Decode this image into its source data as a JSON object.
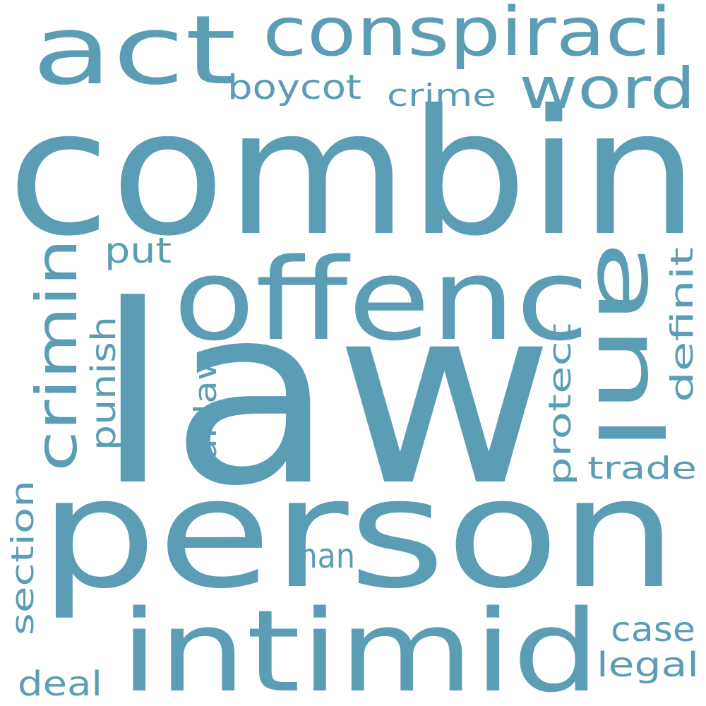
{
  "word_cloud": {
    "color": "#5b9db4",
    "background": "#ffffff",
    "words": [
      {
        "key": "combin",
        "text": "combin"
      },
      {
        "key": "law",
        "text": "law"
      },
      {
        "key": "person",
        "text": "person"
      },
      {
        "key": "offenc",
        "text": "offenc"
      },
      {
        "key": "intimid",
        "text": "intimid"
      },
      {
        "key": "act",
        "text": "act"
      },
      {
        "key": "conspiraci",
        "text": "conspiraci"
      },
      {
        "key": "anl",
        "text": "anl"
      },
      {
        "key": "crimin",
        "text": "crimin"
      },
      {
        "key": "word",
        "text": "word"
      },
      {
        "key": "boycot",
        "text": "boycot"
      },
      {
        "key": "crime",
        "text": "crime"
      },
      {
        "key": "put",
        "text": "put"
      },
      {
        "key": "punish",
        "text": "punish"
      },
      {
        "key": "unlaw",
        "text": "unlaw"
      },
      {
        "key": "protect",
        "text": "protect"
      },
      {
        "key": "definit",
        "text": "definit"
      },
      {
        "key": "trade",
        "text": "trade"
      },
      {
        "key": "man",
        "text": "man"
      },
      {
        "key": "section",
        "text": "section"
      },
      {
        "key": "case",
        "text": "case"
      },
      {
        "key": "legal",
        "text": "legal"
      },
      {
        "key": "deal",
        "text": "deal"
      }
    ]
  }
}
